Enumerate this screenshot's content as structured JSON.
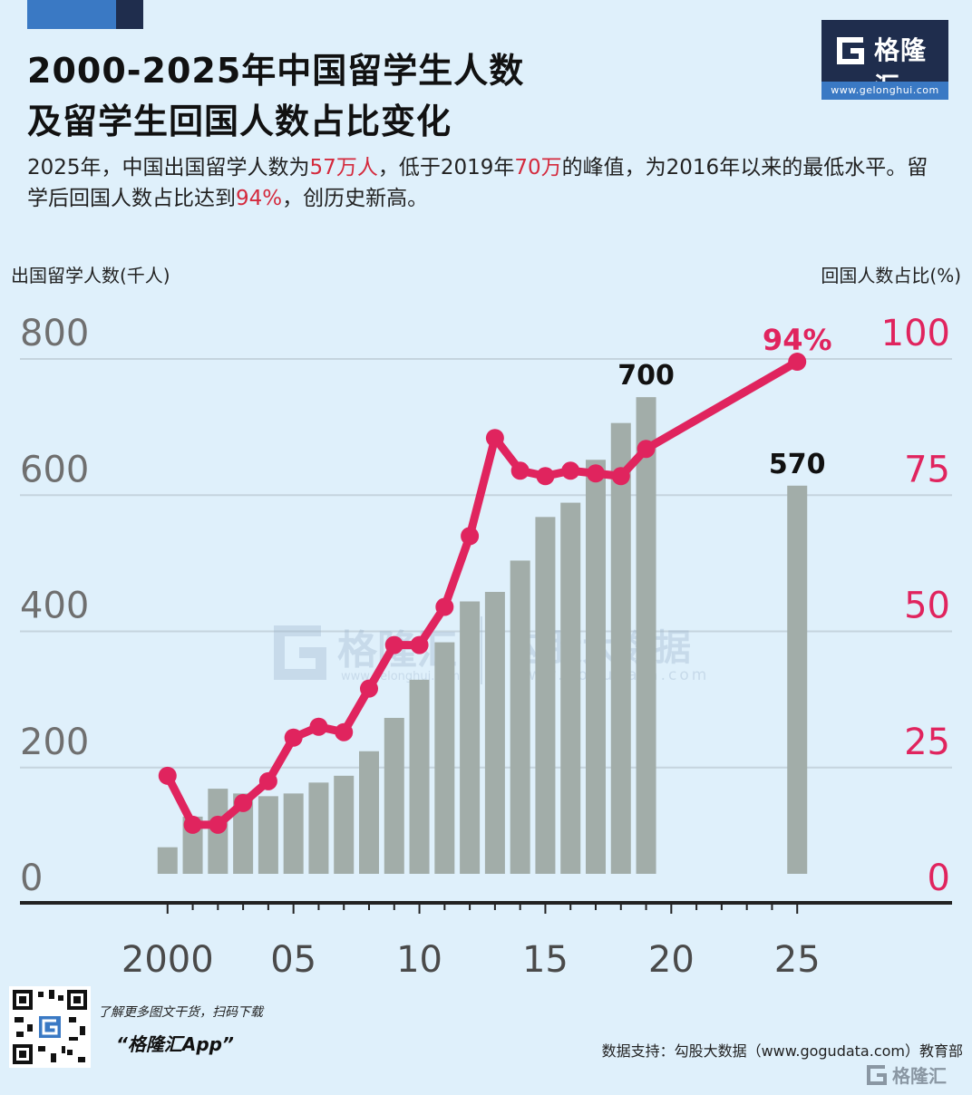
{
  "header": {
    "title_line1": "2000-2025年中国留学生人数",
    "title_line2": "及留学生回国人数占比变化",
    "subtitle_parts": [
      "2025年，中国出国留学人数为",
      "57万人",
      "，低于2019年",
      "70万",
      "的峰值，为2016年以来的最低水平。留学后回国人数占比达到",
      "94%",
      "，创历史新高。"
    ]
  },
  "logo": {
    "name": "格隆汇",
    "url": "www.gelonghui.com"
  },
  "watermark": {
    "left_text": "格隆汇",
    "left_url": "www.gelonghui.com",
    "right_text": "勾股大数据",
    "right_url": "www.gogudata.com"
  },
  "footer": {
    "note": "了解更多图文干货，扫码下载",
    "app": "“格隆汇App”",
    "source": "数据支持：勾股大数据（www.gogudata.com）教育部",
    "corner_logo": "格隆汇"
  },
  "colors": {
    "bar": "#a2ada9",
    "line": "#e0245e",
    "axis": "#222222",
    "grid": "#c5d4de",
    "highlight": "#d42a3d"
  },
  "chart_data": {
    "type": "bar",
    "ylabel": "出国留学人数(千人)",
    "y2label": "回国人数占比(%)",
    "ylim": [
      0,
      800
    ],
    "y2lim": [
      0,
      100
    ],
    "yticks": [
      0,
      200,
      400,
      600,
      800
    ],
    "y2ticks": [
      0,
      25,
      50,
      75,
      100
    ],
    "xlim": [
      1999,
      2026
    ],
    "xtick_values": [
      2000,
      2005,
      2010,
      2015,
      2020,
      2025
    ],
    "xtick_labels": [
      "2000",
      "05",
      "10",
      "15",
      "20",
      "25"
    ],
    "grid": true,
    "bars": {
      "x": [
        2000,
        2001,
        2002,
        2003,
        2004,
        2005,
        2006,
        2007,
        2008,
        2009,
        2010,
        2011,
        2012,
        2013,
        2014,
        2015,
        2016,
        2017,
        2018,
        2019,
        2025
      ],
      "values": [
        39,
        84,
        125,
        118,
        114,
        118,
        134,
        144,
        180,
        229,
        285,
        340,
        400,
        414,
        460,
        524,
        545,
        608,
        662,
        700,
        570
      ]
    },
    "line": {
      "x": [
        2000,
        2001,
        2002,
        2003,
        2004,
        2005,
        2006,
        2007,
        2008,
        2009,
        2010,
        2011,
        2012,
        2013,
        2014,
        2015,
        2016,
        2017,
        2018,
        2019,
        2025
      ],
      "values": [
        18,
        9,
        9,
        13,
        17,
        25,
        27,
        26,
        34,
        42,
        42,
        49,
        62,
        80,
        74,
        73,
        74,
        73.5,
        73,
        78,
        94
      ]
    },
    "annotations": [
      {
        "text": "700",
        "x": 2019,
        "value": 700,
        "series": "bars"
      },
      {
        "text": "570",
        "x": 2025,
        "value": 570,
        "series": "bars"
      },
      {
        "text": "94%",
        "x": 2025,
        "value": 94,
        "series": "line"
      }
    ]
  }
}
